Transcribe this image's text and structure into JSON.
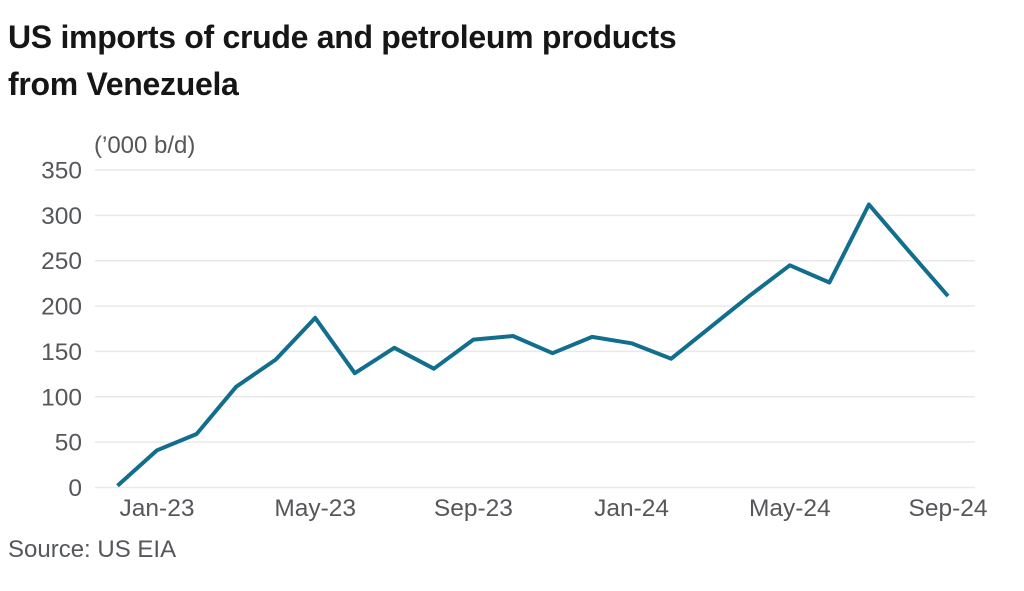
{
  "title": {
    "line1": "US imports of crude and petroleum products",
    "line2": "from Venezuela"
  },
  "source": "Source: US EIA",
  "colors": {
    "line": "#116e8d",
    "grid": "#e9e9e9",
    "axis_text": "#55575a",
    "title_text": "#161616",
    "background": "#ffffff"
  },
  "chart_data": {
    "type": "line",
    "title": "US imports of crude and petroleum products from Venezuela",
    "ylabel": "(’000 b/d)",
    "xlabel": "",
    "x": [
      "Dec-22",
      "Jan-23",
      "Feb-23",
      "Mar-23",
      "Apr-23",
      "May-23",
      "Jun-23",
      "Jul-23",
      "Aug-23",
      "Sep-23",
      "Oct-23",
      "Nov-23",
      "Dec-23",
      "Jan-24",
      "Feb-24",
      "Mar-24",
      "Apr-24",
      "May-24",
      "Jun-24",
      "Jul-24",
      "Aug-24",
      "Sep-24"
    ],
    "series": [
      {
        "name": "US imports of crude and petroleum products from Venezuela ('000 b/d)",
        "values": [
          2,
          41,
          59,
          111,
          141,
          187,
          126,
          154,
          131,
          163,
          167,
          148,
          166,
          159,
          142,
          177,
          212,
          245,
          226,
          312,
          261,
          211
        ]
      }
    ],
    "ylim": [
      0,
      350
    ],
    "yticks": [
      0,
      50,
      100,
      150,
      200,
      250,
      300,
      350
    ],
    "xticks": [
      "Jan-23",
      "May-23",
      "Sep-23",
      "Jan-24",
      "May-24",
      "Sep-24"
    ],
    "grid": "horizontal",
    "legend": false,
    "source": "US EIA"
  }
}
